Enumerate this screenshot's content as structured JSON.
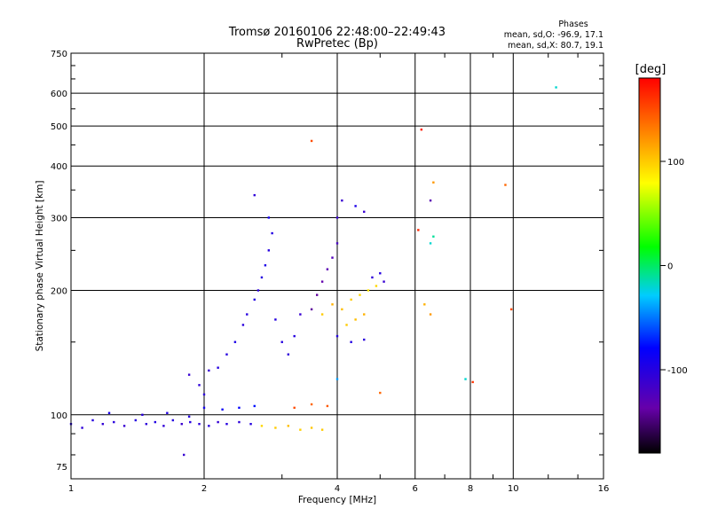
{
  "chart_data": {
    "type": "scatter",
    "title": "Tromsø 20160106 22:48:00–22:49:43",
    "subtitle": "RwPretec (Bp)",
    "xlabel": "Frequency [MHz]",
    "ylabel": "Stationary phase Virtual Height [km]",
    "x_scale": "log",
    "y_scale": "log",
    "xlim": [
      1,
      16
    ],
    "ylim": [
      70,
      750
    ],
    "x_ticks": [
      1,
      2,
      4,
      6,
      8,
      10,
      16
    ],
    "y_ticks": [
      75,
      100,
      200,
      300,
      400,
      500,
      600,
      750
    ],
    "grid": true,
    "stats": {
      "title": "Phases",
      "o_line": "mean, sd,O: -96.9, 17.1",
      "x_line": "mean, sd,X:  80.7, 19.1"
    },
    "colorbar": {
      "label": "[deg]",
      "ticks": [
        100,
        0,
        -100
      ],
      "range": [
        -180,
        180
      ]
    },
    "colors": {
      "grid": "#000000",
      "background": "#ffffff"
    },
    "series": [
      {
        "points": [
          [
            1.0,
            95,
            -100
          ],
          [
            1.06,
            93,
            -105
          ],
          [
            1.12,
            97,
            -100
          ],
          [
            1.18,
            95,
            -108
          ],
          [
            1.25,
            96,
            -102
          ],
          [
            1.32,
            94,
            -110
          ],
          [
            1.4,
            97,
            -100
          ],
          [
            1.48,
            95,
            -104
          ],
          [
            1.55,
            96,
            -98
          ],
          [
            1.62,
            94,
            -106
          ],
          [
            1.7,
            97,
            -100
          ],
          [
            1.78,
            95,
            -112
          ],
          [
            1.86,
            96,
            -100
          ],
          [
            1.95,
            95,
            -104
          ],
          [
            2.05,
            94,
            -100
          ],
          [
            2.15,
            96,
            -108
          ],
          [
            2.25,
            95,
            -100
          ],
          [
            2.4,
            96,
            -104
          ],
          [
            2.55,
            95,
            -100
          ],
          [
            1.22,
            101,
            -95
          ],
          [
            1.45,
            100,
            -102
          ],
          [
            1.65,
            101,
            -98
          ],
          [
            1.85,
            99,
            -100
          ],
          [
            2.7,
            94,
            95
          ],
          [
            2.9,
            93,
            100
          ],
          [
            3.1,
            94,
            105
          ],
          [
            3.3,
            92,
            98
          ],
          [
            3.5,
            93,
            102
          ],
          [
            3.7,
            92,
            100
          ],
          [
            2.0,
            104,
            -90
          ],
          [
            2.2,
            103,
            -85
          ],
          [
            2.4,
            104,
            -80
          ],
          [
            2.6,
            105,
            -75
          ],
          [
            3.2,
            104,
            150
          ],
          [
            3.5,
            106,
            140
          ],
          [
            3.8,
            105,
            145
          ],
          [
            1.85,
            125,
            -110
          ],
          [
            1.95,
            118,
            -105
          ],
          [
            2.05,
            128,
            -108
          ],
          [
            2.15,
            130,
            -100
          ],
          [
            2.0,
            112,
            -104
          ],
          [
            2.25,
            140,
            -100
          ],
          [
            2.35,
            150,
            -95
          ],
          [
            2.45,
            165,
            -102
          ],
          [
            2.5,
            175,
            -100
          ],
          [
            2.6,
            190,
            -98
          ],
          [
            2.65,
            200,
            -104
          ],
          [
            2.7,
            215,
            -100
          ],
          [
            2.75,
            230,
            -95
          ],
          [
            2.8,
            250,
            -100
          ],
          [
            2.85,
            275,
            -98
          ],
          [
            2.8,
            300,
            -90
          ],
          [
            2.6,
            340,
            -105
          ],
          [
            2.9,
            170,
            -100
          ],
          [
            3.0,
            150,
            -100
          ],
          [
            3.1,
            140,
            -104
          ],
          [
            3.2,
            155,
            -100
          ],
          [
            3.3,
            175,
            -110
          ],
          [
            3.5,
            180,
            -140
          ],
          [
            3.6,
            195,
            -140
          ],
          [
            3.7,
            210,
            -135
          ],
          [
            3.8,
            225,
            -130
          ],
          [
            3.9,
            240,
            -125
          ],
          [
            4.0,
            260,
            -120
          ],
          [
            4.0,
            300,
            -110
          ],
          [
            3.7,
            175,
            100
          ],
          [
            3.9,
            185,
            110
          ],
          [
            4.1,
            180,
            105
          ],
          [
            4.3,
            190,
            100
          ],
          [
            4.5,
            195,
            95
          ],
          [
            4.7,
            200,
            90
          ],
          [
            4.9,
            205,
            95
          ],
          [
            4.2,
            165,
            100
          ],
          [
            4.4,
            170,
            105
          ],
          [
            4.6,
            175,
            110
          ],
          [
            4.0,
            155,
            -100
          ],
          [
            4.3,
            150,
            -98
          ],
          [
            4.6,
            152,
            -102
          ],
          [
            4.8,
            215,
            -105
          ],
          [
            5.0,
            220,
            -100
          ],
          [
            5.1,
            210,
            -110
          ],
          [
            4.1,
            330,
            -110
          ],
          [
            4.4,
            320,
            -95
          ],
          [
            4.6,
            310,
            -110
          ],
          [
            3.5,
            460,
            150
          ],
          [
            6.2,
            490,
            170
          ],
          [
            6.1,
            280,
            165
          ],
          [
            6.6,
            365,
            120
          ],
          [
            6.5,
            330,
            -130
          ],
          [
            6.6,
            270,
            -10
          ],
          [
            6.5,
            260,
            -20
          ],
          [
            9.6,
            360,
            140
          ],
          [
            9.9,
            180,
            150
          ],
          [
            7.8,
            122,
            -20
          ],
          [
            8.1,
            120,
            160
          ],
          [
            12.5,
            620,
            -20
          ],
          [
            4.0,
            122,
            -40
          ],
          [
            5.0,
            113,
            140
          ],
          [
            6.3,
            185,
            110
          ],
          [
            6.5,
            175,
            120
          ],
          [
            1.8,
            80,
            -110
          ]
        ]
      }
    ]
  }
}
